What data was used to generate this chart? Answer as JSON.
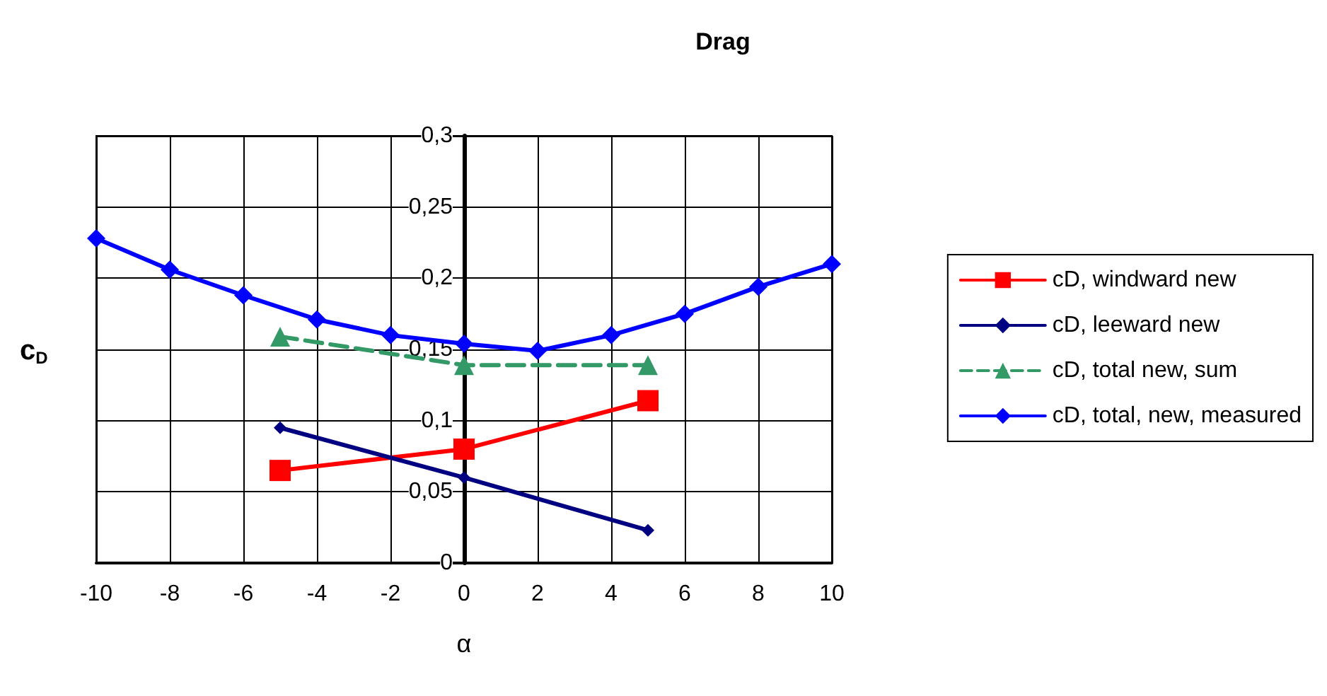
{
  "chart_data": {
    "type": "line",
    "title": "Drag",
    "xlabel": "α",
    "ylabel": "c$_{D}$",
    "xlim": [
      -10,
      10
    ],
    "xticks": [
      -10,
      -8,
      -6,
      -4,
      -2,
      0,
      2,
      4,
      6,
      8,
      10
    ],
    "ylim": [
      0,
      0.3
    ],
    "yticks": [
      {
        "value": 0,
        "label": "0"
      },
      {
        "value": 0.05,
        "label": "0,05"
      },
      {
        "value": 0.1,
        "label": "0,1"
      },
      {
        "value": 0.15,
        "label": "0,15"
      },
      {
        "value": 0.2,
        "label": "0,2"
      },
      {
        "value": 0.25,
        "label": "0,25"
      },
      {
        "value": 0.3,
        "label": "0,3"
      }
    ],
    "grid": true,
    "legend": "right",
    "series": [
      {
        "name": "cD, windward new",
        "color": "#ff0000",
        "marker": "square",
        "x": [
          -5,
          0,
          5
        ],
        "values": [
          0.065,
          0.08,
          0.114
        ]
      },
      {
        "name": "cD, leeward new",
        "color": "#000080",
        "marker": "diamond",
        "x": [
          -5,
          0,
          5
        ],
        "values": [
          0.095,
          0.06,
          0.023
        ]
      },
      {
        "name": "cD, total new, sum",
        "color": "#339966",
        "marker": "triangle",
        "line_style": "dashed",
        "x": [
          -5,
          0,
          5
        ],
        "values": [
          0.159,
          0.139,
          0.139
        ]
      },
      {
        "name": "cD, total, new, measured",
        "color": "#0000ff",
        "marker": "diamond",
        "x": [
          -10,
          -8,
          -6,
          -4,
          -2,
          0,
          2,
          4,
          6,
          8,
          10
        ],
        "values": [
          0.228,
          0.206,
          0.188,
          0.171,
          0.16,
          0.154,
          0.149,
          0.16,
          0.175,
          0.194,
          0.21
        ]
      }
    ]
  }
}
